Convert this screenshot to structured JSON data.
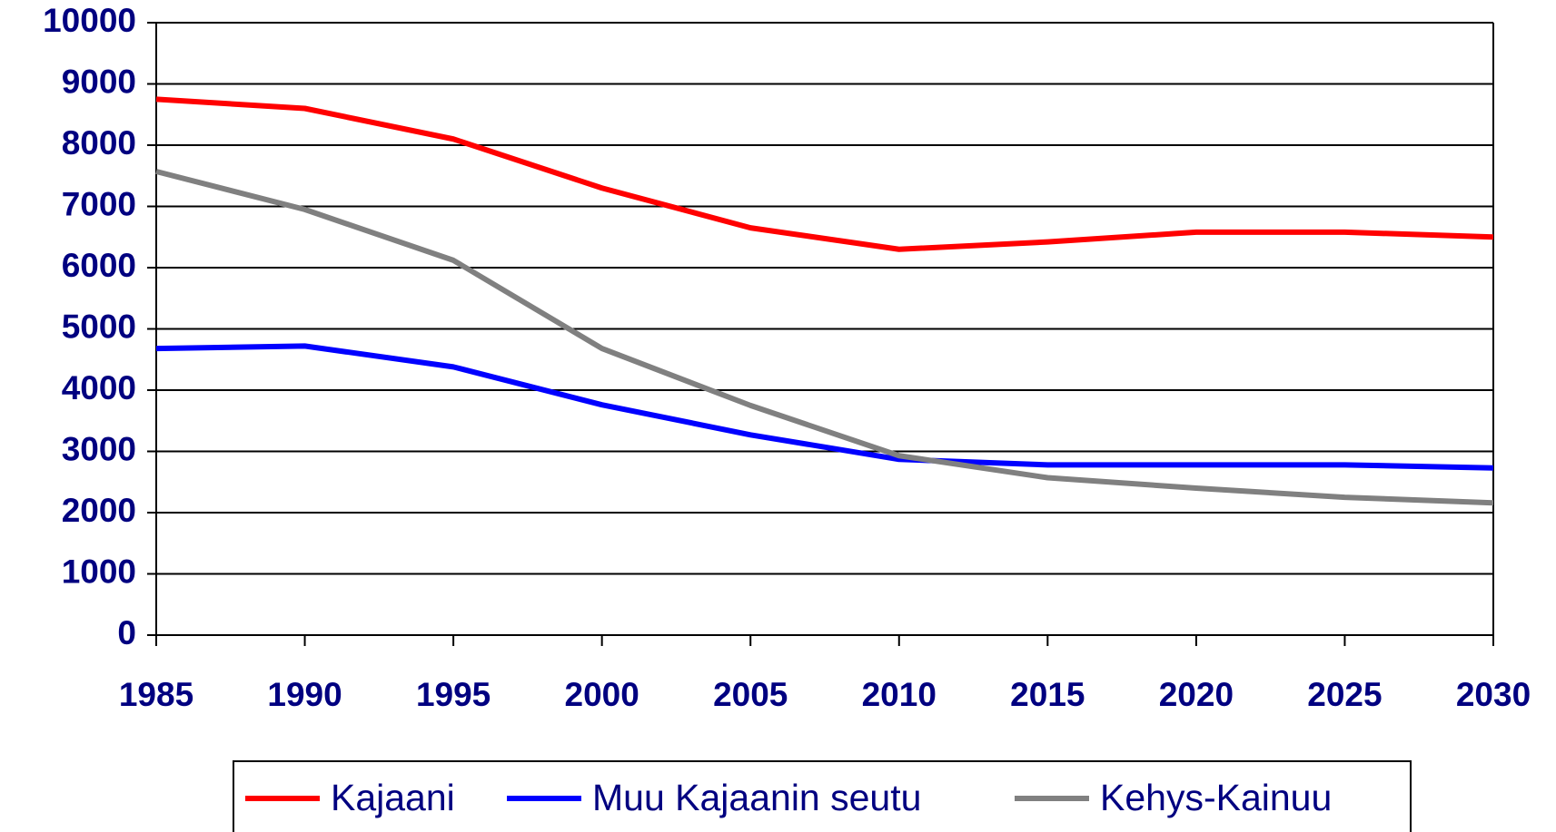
{
  "chart_data": {
    "type": "line",
    "x": [
      1985,
      1990,
      1995,
      2000,
      2005,
      2010,
      2015,
      2020,
      2025,
      2030
    ],
    "xlim": [
      1985,
      2030
    ],
    "xticks": [
      1985,
      1990,
      1995,
      2000,
      2005,
      2010,
      2015,
      2020,
      2025,
      2030
    ],
    "ylim": [
      0,
      10000
    ],
    "yticks": [
      0,
      1000,
      2000,
      3000,
      4000,
      5000,
      6000,
      7000,
      8000,
      9000,
      10000
    ],
    "grid": true,
    "legend": "bottom",
    "series": [
      {
        "name": "Kajaani",
        "color": "#ff0000",
        "values": [
          8750,
          8600,
          8100,
          7300,
          6650,
          6300,
          6420,
          6580,
          6580,
          6500
        ]
      },
      {
        "name": "Muu Kajaanin seutu",
        "color": "#0000ff",
        "values": [
          4680,
          4720,
          4380,
          3760,
          3270,
          2870,
          2780,
          2780,
          2780,
          2730
        ]
      },
      {
        "name": "Kehys-Kainuu",
        "color": "#808080",
        "values": [
          7570,
          6950,
          6120,
          4680,
          3750,
          2930,
          2570,
          2400,
          2250,
          2160
        ]
      }
    ]
  }
}
